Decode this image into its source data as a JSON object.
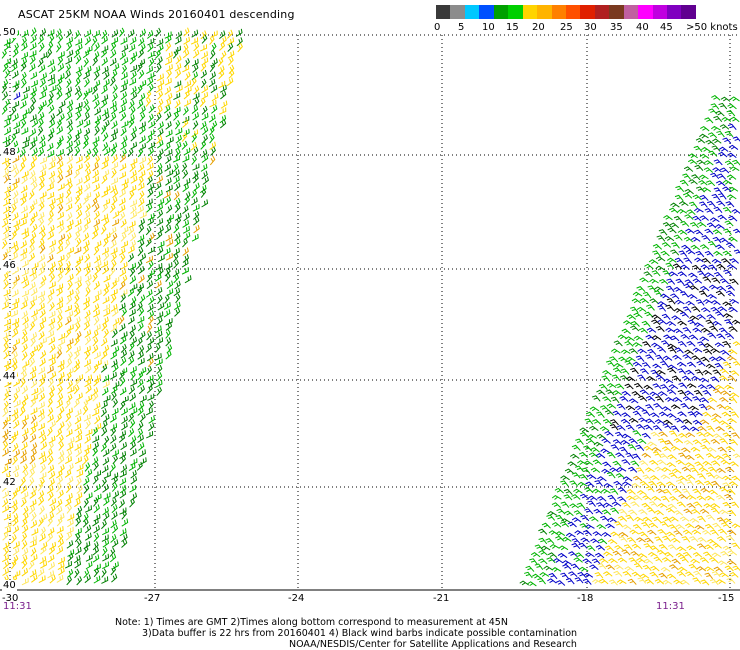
{
  "title": "ASCAT 25KM NOAA Winds 20160401 descending",
  "legend": {
    "labels": [
      "0",
      "5",
      "10",
      "15",
      "20",
      "25",
      "30",
      "35",
      "40",
      "45",
      ">50 knots"
    ],
    "colors": [
      "#3a3a3a",
      "#8c8c8c",
      "#00c8ff",
      "#0050ff",
      "#00a000",
      "#00d000",
      "#ffd400",
      "#ffb400",
      "#ff8000",
      "#ff5000",
      "#e02000",
      "#b02020",
      "#7a3a20",
      "#c060a0",
      "#ff00ff",
      "#c000e0",
      "#8000c0",
      "#600090"
    ]
  },
  "map": {
    "lat_labels": [
      "50",
      "48",
      "46",
      "44",
      "42",
      "40"
    ],
    "lon_labels": [
      "-30",
      "-27",
      "-24",
      "-21",
      "-18",
      "-15"
    ],
    "time_labels": [
      "11:31",
      "11:31"
    ]
  },
  "notes": {
    "line1": "Note: 1) Times are GMT 2)Times along bottom correspond to measurement at 45N",
    "line2": "3)Data buffer is 22 hrs from 20160401 4) Black wind barbs indicate possible contamination",
    "line3": "NOAA/NESDIS/Center for Satellite Applications and Research"
  },
  "wind_colors": {
    "dark_green": "#008000",
    "green": "#00b400",
    "yellow": "#ffd700",
    "light_yellow": "#ffe860",
    "orange": "#e6a000",
    "blue": "#0000c8",
    "black": "#000000"
  }
}
